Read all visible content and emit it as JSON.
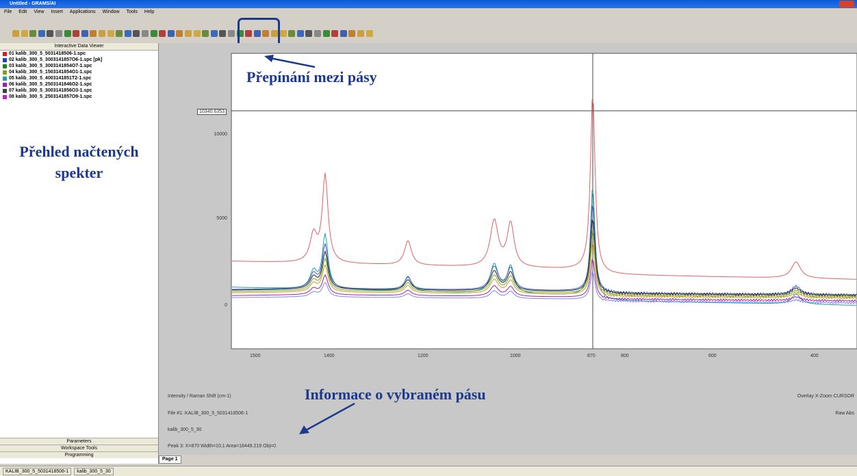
{
  "window": {
    "title": "Untitled - GRAMS/AI"
  },
  "menu": [
    "File",
    "Edit",
    "View",
    "Insert",
    "Applications",
    "Window",
    "Tools",
    "Help"
  ],
  "viewer": {
    "header": "Interactive Data Viewer",
    "files": [
      "01 kalib_300_5_5031418506-1.spc",
      "02 kalib_300_5_3003141857O6-1.spc [pk]",
      "03 kalib_300_5_3003141854O7-1.spc",
      "04 kalib_300_5_1503141854O1-1.spc",
      "05 kalib_300_5_4003141851T2-1.spc",
      "06 kalib_300_5_2503141846O2-1.spc",
      "07 kalib_300_5_3003141856O3-1.spc",
      "08 kalib_300_5_2503141857O9-1.spc"
    ],
    "tabs": [
      "Parameters",
      "Workspace Tools",
      "Programming"
    ]
  },
  "plot": {
    "cursor_readout": "10340.6353",
    "yticks": [
      "10000",
      "5000",
      "0"
    ],
    "xticks": [
      "1500",
      "1400",
      "1200",
      "1000",
      "870",
      "800",
      "600",
      "400"
    ]
  },
  "info": {
    "axes": "Intensity / Raman Shift (cm-1)",
    "file": "File #1: KALIB_300_5_5031418506-1",
    "name": "kalib_300_5_30",
    "peak": "Peak 3:  X=870   Width=10.1   Area=18449.219   Obj=0",
    "mode": "Overlay X-Zoom CURSOR",
    "units": "Raw Abs"
  },
  "page_tab": "Page 1",
  "status": [
    "KALIB_300_5_5031418506-1",
    "kalib_300_5_30"
  ],
  "annotations": {
    "toolbar": "Přepínání mezi pásy",
    "overview": "Přehled načtených spekter",
    "band_info": "Informace o vybraném pásu"
  }
}
